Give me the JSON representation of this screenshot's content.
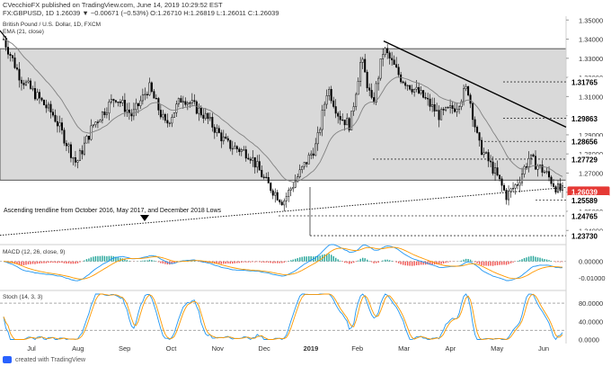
{
  "header": {
    "publisher": "CVecchioFX",
    "published_line": "CVecchioFX published on TradingView.com, June 14, 2019 10:29:52 EST",
    "symbol_line": "FX:GBPUSD, 1D  1.26039  ▼ −0.00671 (−0.53%)  O:1.26710  H:1.26819  L:1.26011  C:1.26039",
    "instrument": "British Pound / U.S. Dollar, 1D, FXCM",
    "ema_label": "EMA (21, close)"
  },
  "annotation": {
    "trendline_label": "Ascending trendline from October 2016, May 2017, and December 2018 Lows",
    "marker_icon": "down-triangle-icon"
  },
  "colors": {
    "up_candle": "#ffffff",
    "down_candle": "#000000",
    "range_box": "#d9d9d9",
    "ema": "#808080",
    "price_label": "#e53935",
    "macd_line": "#2196f3",
    "signal_line": "#ff9800",
    "hist_pos": "#26a69a",
    "hist_neg": "#ef5350",
    "stoch_k": "#2196f3",
    "stoch_d": "#ff9800"
  },
  "chart_data": [
    {
      "type": "candlestick",
      "title": "British Pound / U.S. Dollar, 1D, FXCM",
      "x_tick_labels": [
        "Jul",
        "Aug",
        "Sep",
        "Oct",
        "Nov",
        "Dec",
        "2019",
        "Feb",
        "Mar",
        "Apr",
        "May",
        "Jun"
      ],
      "ylim": [
        1.2345,
        1.352
      ],
      "y_tick_labels": [
        "1.35000",
        "1.34000",
        "1.33000",
        "1.32000",
        "1.31000",
        "1.30000",
        "1.29000",
        "1.28000",
        "1.27000",
        "1.26000",
        "1.25000",
        "1.24000"
      ],
      "price_labels": [
        {
          "value": 1.31765,
          "text": "1.31765",
          "style": "dark"
        },
        {
          "value": 1.29863,
          "text": "1.29863",
          "style": "dark"
        },
        {
          "value": 1.28656,
          "text": "1.28656",
          "style": "dark"
        },
        {
          "value": 1.27729,
          "text": "1.27729",
          "style": "dark"
        },
        {
          "value": 1.26039,
          "text": "1.26039",
          "style": "red"
        },
        {
          "value": 1.25589,
          "text": "1.25589",
          "style": "dark"
        },
        {
          "value": 1.24765,
          "text": "1.24765",
          "style": "dark"
        },
        {
          "value": 1.2373,
          "text": "1.23730",
          "style": "dark"
        }
      ],
      "range_box": {
        "top": 1.335,
        "bottom": 1.2663
      },
      "descending_trendline": [
        [
          0.68,
          1.339
        ],
        [
          1.0,
          1.294
        ]
      ],
      "ascending_trendline": [
        [
          0.0,
          1.2375
        ],
        [
          1.0,
          1.2625
        ]
      ],
      "anchors": [
        [
          0.0,
          1.34
        ],
        [
          0.03,
          1.32
        ],
        [
          0.09,
          1.3
        ],
        [
          0.13,
          1.275
        ],
        [
          0.16,
          1.295
        ],
        [
          0.2,
          1.31
        ],
        [
          0.23,
          1.3
        ],
        [
          0.26,
          1.315
        ],
        [
          0.29,
          1.295
        ],
        [
          0.32,
          1.31
        ],
        [
          0.36,
          1.3
        ],
        [
          0.4,
          1.285
        ],
        [
          0.44,
          1.28
        ],
        [
          0.47,
          1.265
        ],
        [
          0.5,
          1.255
        ],
        [
          0.53,
          1.27
        ],
        [
          0.56,
          1.285
        ],
        [
          0.58,
          1.315
        ],
        [
          0.6,
          1.3
        ],
        [
          0.62,
          1.295
        ],
        [
          0.64,
          1.33
        ],
        [
          0.66,
          1.305
        ],
        [
          0.68,
          1.335
        ],
        [
          0.71,
          1.32
        ],
        [
          0.75,
          1.31
        ],
        [
          0.78,
          1.3
        ],
        [
          0.81,
          1.305
        ],
        [
          0.83,
          1.315
        ],
        [
          0.85,
          1.285
        ],
        [
          0.88,
          1.27
        ],
        [
          0.9,
          1.258
        ],
        [
          0.92,
          1.265
        ],
        [
          0.94,
          1.278
        ],
        [
          0.97,
          1.27
        ],
        [
          0.99,
          1.262
        ],
        [
          1.0,
          1.2604
        ]
      ]
    },
    {
      "type": "line",
      "title": "MACD (12, 26, close, 9)",
      "ylim": [
        -0.016,
        0.008
      ],
      "y_tick_labels": [
        "0.00000",
        "-0.01000"
      ],
      "y_ticks": [
        0.0,
        -0.01
      ],
      "series": []
    },
    {
      "type": "line",
      "title": "Stoch (14, 3, 3)",
      "ylim": [
        -5,
        100
      ],
      "y_tick_labels": [
        "80.0000",
        "40.0000",
        "0.0000"
      ],
      "y_ticks": [
        80,
        40,
        0
      ],
      "levels": [
        80,
        20
      ],
      "series": []
    }
  ],
  "footer": {
    "logo_icon": "tradingview-logo-icon",
    "text": "created with TradingView"
  }
}
